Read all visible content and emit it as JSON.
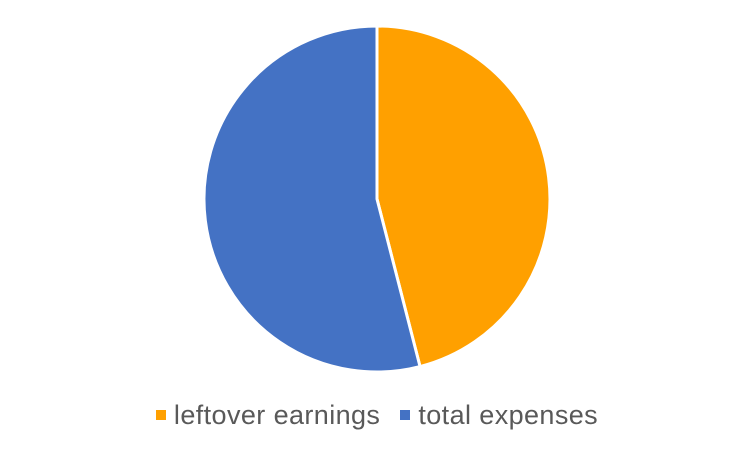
{
  "chart_data": {
    "type": "pie",
    "categories": [
      "leftover earnings",
      "total expenses"
    ],
    "values": [
      46,
      54
    ],
    "colors": [
      "#FFA000",
      "#4472C4"
    ],
    "start_angle_deg": 0,
    "direction": "clockwise",
    "slice_separator_color": "#ffffff",
    "legend_position": "bottom"
  }
}
